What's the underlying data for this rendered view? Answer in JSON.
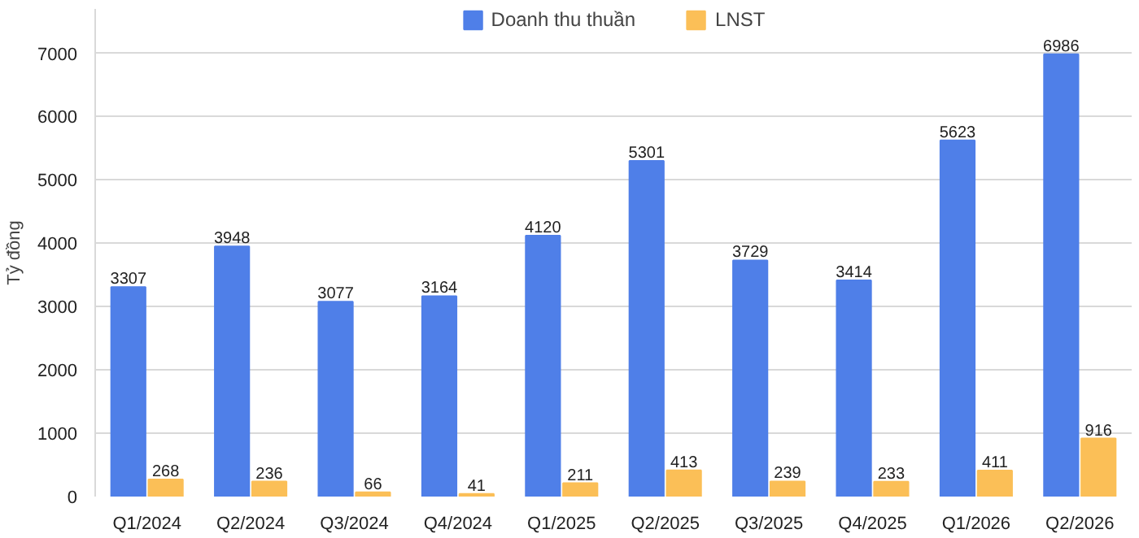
{
  "chart_data": {
    "type": "bar",
    "ylabel": "Tỷ đồng",
    "categories": [
      "Q1/2024",
      "Q2/2024",
      "Q3/2024",
      "Q4/2024",
      "Q1/2025",
      "Q2/2025",
      "Q3/2025",
      "Q4/2025",
      "Q1/2026",
      "Q2/2026"
    ],
    "series": [
      {
        "name": "Doanh thu thuần",
        "color": "#4f7fe8",
        "values": [
          3307,
          3948,
          3077,
          3164,
          4120,
          5301,
          3729,
          3414,
          5623,
          6986
        ]
      },
      {
        "name": "LNST",
        "color": "#fbbf57",
        "values": [
          268,
          236,
          66,
          41,
          211,
          413,
          239,
          233,
          411,
          916
        ]
      }
    ],
    "ylim": [
      0,
      7700
    ],
    "yticks": [
      0,
      1000,
      2000,
      3000,
      4000,
      5000,
      6000,
      7000
    ],
    "grid": "y",
    "legend": "top",
    "data_labels": true
  }
}
